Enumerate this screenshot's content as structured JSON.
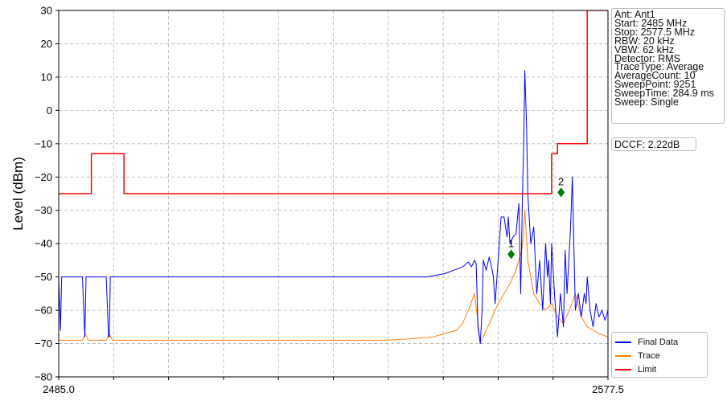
{
  "chart_data": {
    "type": "line",
    "xlabel": "",
    "ylabel": "Level (dBm)",
    "xlim": [
      2485.0,
      2577.5
    ],
    "ylim": [
      -80,
      30
    ],
    "x_ticks": [
      2485.0,
      2577.5
    ],
    "x_tick_labels": [
      "2485.0",
      "2577.5"
    ],
    "y_ticks": [
      30,
      20,
      10,
      0,
      -10,
      -20,
      -30,
      -40,
      -50,
      -60,
      -70,
      -80
    ],
    "y_tick_labels": [
      "30",
      "20",
      "10",
      "0",
      "−10",
      "−20",
      "−30",
      "−40",
      "−50",
      "−60",
      "−70",
      "−80"
    ],
    "x_minor_tick_count": 9,
    "grid": true,
    "legend_position": "bottom-right",
    "series": [
      {
        "name": "Final Data",
        "color": "#0000ff",
        "x": [
          2485.0,
          2485.3,
          2485.5,
          2485.8,
          2486.0,
          2486.3,
          2488.0,
          2489.0,
          2489.4,
          2489.6,
          2489.8,
          2490.1,
          2490.4,
          2493.0,
          2493.4,
          2493.5,
          2493.7,
          2494.2,
          2494.5,
          2500,
          2510,
          2520,
          2530,
          2540,
          2547,
          2550,
          2553.0,
          2554.0,
          2554.5,
          2555.0,
          2555.3,
          2555.6,
          2556.0,
          2556.3,
          2556.5,
          2557.0,
          2557.5,
          2558.0,
          2558.2,
          2558.5,
          2559.0,
          2559.5,
          2560.0,
          2560.5,
          2560.7,
          2561.0,
          2561.5,
          2562.0,
          2562.5,
          2562.8,
          2563.1,
          2563.3,
          2563.5,
          2563.8,
          2564.0,
          2564.5,
          2565.0,
          2565.5,
          2566.0,
          2566.5,
          2567.0,
          2567.3,
          2567.5,
          2567.8,
          2568.0,
          2568.5,
          2569.0,
          2569.5,
          2570.0,
          2570.3,
          2570.6,
          2570.9,
          2571.2,
          2571.5,
          2572.0,
          2572.5,
          2573.0,
          2573.5,
          2573.8,
          2574.0,
          2574.5,
          2575.0,
          2575.5,
          2576.0,
          2576.5,
          2577.0,
          2577.5
        ],
        "y": [
          -50,
          -66,
          -50,
          -50,
          -50,
          -50,
          -50,
          -50,
          -68,
          -50,
          -50,
          -50,
          -50,
          -50,
          -68,
          -68,
          -50,
          -50,
          -50,
          -50,
          -50,
          -50,
          -50,
          -50,
          -50,
          -49,
          -47,
          -45.5,
          -47,
          -45,
          -46,
          -65,
          -70,
          -60,
          -45,
          -48,
          -44,
          -48,
          -50,
          -58,
          -45,
          -32,
          -32,
          -38,
          -32,
          -40,
          -38,
          -37,
          -28,
          -55,
          -25,
          -10,
          12,
          -5,
          -25,
          -40,
          -35,
          -55,
          -45,
          -60,
          -40,
          -50,
          -45,
          -58,
          -40,
          -55,
          -68,
          -55,
          -65,
          -42,
          -55,
          -45,
          -35,
          -20,
          -60,
          -55,
          -62,
          -55,
          -58,
          -50,
          -60,
          -65,
          -58,
          -62,
          -60,
          -63,
          -60
        ]
      },
      {
        "name": "Trace",
        "color": "#ff7f0e",
        "x": [
          2485.0,
          2487,
          2489,
          2489.5,
          2490,
          2493,
          2493.5,
          2494,
          2500,
          2510,
          2520,
          2530,
          2540,
          2545,
          2548,
          2550,
          2552,
          2553,
          2554,
          2555,
          2555.5,
          2556,
          2556.5,
          2557,
          2558,
          2559,
          2560,
          2561,
          2562,
          2562.5,
          2563,
          2563.2,
          2563.5,
          2564,
          2565,
          2566,
          2567,
          2568,
          2569,
          2570,
          2571,
          2572,
          2573,
          2574,
          2575,
          2576,
          2577.5
        ],
        "y": [
          -69,
          -69,
          -69,
          -67,
          -69,
          -69,
          -67,
          -69,
          -69,
          -69,
          -69,
          -69,
          -69,
          -68.5,
          -68,
          -67,
          -66,
          -64,
          -60,
          -55,
          -62,
          -70,
          -68,
          -66,
          -62,
          -58,
          -55,
          -52,
          -48,
          -45,
          -42,
          -38,
          -30,
          -45,
          -55,
          -58,
          -60,
          -58,
          -62,
          -64,
          -60,
          -55,
          -62,
          -65,
          -66,
          -67,
          -68
        ]
      },
      {
        "name": "Limit",
        "color": "#ff0000",
        "x": [
          2485.0,
          2490.5,
          2490.5,
          2496.0,
          2496.0,
          2568.0,
          2568.0,
          2569.0,
          2569.0,
          2574.0,
          2574.0,
          2577.5
        ],
        "y": [
          -25,
          -25,
          -13,
          -13,
          -25,
          -25,
          -13,
          -13,
          -10,
          -10,
          30,
          30
        ]
      }
    ],
    "markers": [
      {
        "label": "1",
        "x": 2561.2,
        "y": -43.2,
        "color": "#008000"
      },
      {
        "label": "2",
        "x": 2569.6,
        "y": -24.6,
        "color": "#008000"
      }
    ],
    "annotations": {
      "info_lines": [
        "Ant: Ant1",
        "Start: 2485 MHz",
        "Stop: 2577.5 MHz",
        "RBW: 20 kHz",
        "VBW: 62 kHz",
        "Detector: RMS",
        "TraceType: Average",
        "AverageCount: 10",
        "SweepPoint: 9251",
        "SweepTime: 284.9 ms",
        "Sweep: Single"
      ],
      "dccf": "DCCF: 2.22dB"
    }
  }
}
